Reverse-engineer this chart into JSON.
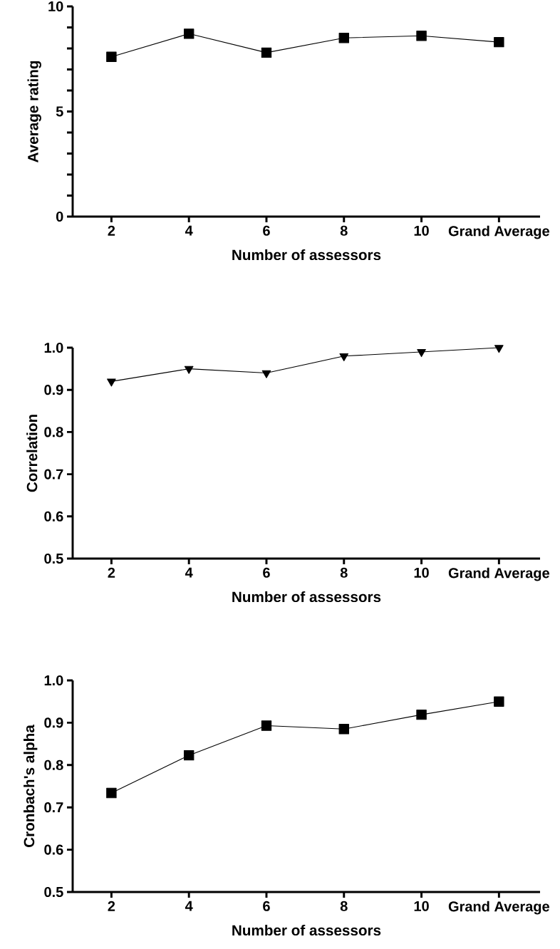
{
  "chart_data": [
    {
      "type": "line",
      "categories": [
        "2",
        "4",
        "6",
        "8",
        "10",
        "Grand Average"
      ],
      "values": [
        7.6,
        8.7,
        7.8,
        8.5,
        8.6,
        8.3
      ],
      "color": "#000000",
      "marker": "square",
      "xlabel": "Number of assessors",
      "ylabel": "Average rating",
      "ylim": [
        0,
        10
      ],
      "yticks": [
        0,
        {
          "value": 1,
          "label": null
        },
        {
          "value": 2,
          "label": null
        },
        {
          "value": 3,
          "label": null
        },
        {
          "value": 4,
          "label": null
        },
        5,
        {
          "value": 6,
          "label": null
        },
        {
          "value": 7,
          "label": null
        },
        {
          "value": 8,
          "label": null
        },
        {
          "value": 9,
          "label": null
        },
        10
      ]
    },
    {
      "type": "line",
      "categories": [
        "2",
        "4",
        "6",
        "8",
        "10",
        "Grand Average"
      ],
      "values": [
        0.92,
        0.95,
        0.94,
        0.98,
        0.99,
        1.0
      ],
      "color": "#000000",
      "marker": "triangle",
      "xlabel": "Number of assessors",
      "ylabel": "Correlation",
      "ylim": [
        0.5,
        1.0
      ],
      "yticks": [
        {
          "value": 0.5,
          "label": "0.5"
        },
        {
          "value": 0.6,
          "label": "0.6"
        },
        {
          "value": 0.7,
          "label": "0.7"
        },
        {
          "value": 0.8,
          "label": "0.8"
        },
        {
          "value": 0.9,
          "label": "0.9"
        },
        {
          "value": 1.0,
          "label": "1.0"
        }
      ]
    },
    {
      "type": "line",
      "categories": [
        "2",
        "4",
        "6",
        "8",
        "10",
        "Grand Average"
      ],
      "values": [
        0.734,
        0.823,
        0.893,
        0.885,
        0.919,
        0.95
      ],
      "color": "#000000",
      "marker": "square",
      "xlabel": "Number of assessors",
      "ylabel": "Cronbach's alpha",
      "ylim": [
        0.5,
        1.0
      ],
      "yticks": [
        {
          "value": 0.5,
          "label": "0.5"
        },
        {
          "value": 0.6,
          "label": "0.6"
        },
        {
          "value": 0.7,
          "label": "0.7"
        },
        {
          "value": 0.8,
          "label": "0.8"
        },
        {
          "value": 0.9,
          "label": "0.9"
        },
        {
          "value": 1.0,
          "label": "1.0"
        }
      ]
    }
  ]
}
